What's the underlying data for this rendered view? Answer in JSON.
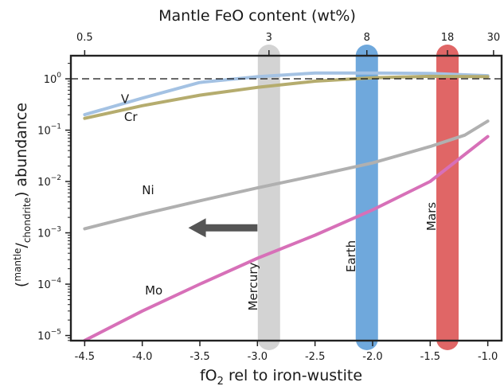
{
  "chart_data": {
    "type": "line",
    "x_axis": {
      "label_main": "fO",
      "label_sub": "2",
      "label_rest": " rel to iron-wustite",
      "range": [
        -4.62,
        -0.88
      ],
      "ticks": [
        -4.5,
        -4.0,
        -3.5,
        -3.0,
        -2.5,
        -2.0,
        -1.5,
        -1.0
      ],
      "tick_labels": [
        "-4.5",
        "-4.0",
        "-3.5",
        "-3.0",
        "-2.5",
        "-2.0",
        "-1.5",
        "-1.0"
      ]
    },
    "y_axis": {
      "scale": "log",
      "range_exponent": [
        -5.1,
        0.45
      ],
      "ticks_exponent": [
        -5,
        -4,
        -3,
        -2,
        -1,
        0
      ],
      "label_open": "(",
      "label_sup1": "mantle",
      "label_slash": "/",
      "label_sub1": "chondrite",
      "label_close": ") abundance"
    },
    "top_axis": {
      "label": "Mantle FeO content (wt%)",
      "ticks": [
        {
          "label": "0.5",
          "x": -4.5
        },
        {
          "label": "3",
          "x": -2.9
        },
        {
          "label": "8",
          "x": -2.05
        },
        {
          "label": "18",
          "x": -1.35
        },
        {
          "label": "30",
          "x": -0.95
        }
      ]
    },
    "reference_line": {
      "y": 1,
      "style": "dashed"
    },
    "bands": [
      {
        "name": "Mercury",
        "x": -2.9,
        "color": "#d3d3d3"
      },
      {
        "name": "Earth",
        "x": -2.05,
        "color": "#6fa8dc"
      },
      {
        "name": "Mars",
        "x": -1.35,
        "color": "#e06666"
      }
    ],
    "series": [
      {
        "name": "V",
        "color": "#a4c2e3",
        "x": [
          -4.5,
          -4.0,
          -3.5,
          -3.0,
          -2.5,
          -2.0,
          -1.5,
          -1.0
        ],
        "y": [
          0.2,
          0.42,
          0.85,
          1.1,
          1.3,
          1.3,
          1.27,
          1.15
        ]
      },
      {
        "name": "Cr",
        "color": "#b5ac6e",
        "x": [
          -4.5,
          -4.0,
          -3.5,
          -3.0,
          -2.5,
          -2.0,
          -1.5,
          -1.0
        ],
        "y": [
          0.17,
          0.3,
          0.48,
          0.68,
          0.9,
          1.05,
          1.12,
          1.1
        ]
      },
      {
        "name": "Ni",
        "color": "#b0b0b0",
        "x": [
          -4.5,
          -4.0,
          -3.5,
          -3.0,
          -2.5,
          -2.0,
          -1.5,
          -1.2,
          -1.0
        ],
        "y": [
          0.0012,
          0.0023,
          0.0042,
          0.0075,
          0.013,
          0.023,
          0.048,
          0.08,
          0.15
        ]
      },
      {
        "name": "Mo",
        "color": "#d770b8",
        "x": [
          -4.5,
          -4.0,
          -3.5,
          -3.0,
          -2.5,
          -2.0,
          -1.5,
          -1.0
        ],
        "y": [
          8e-06,
          3e-05,
          0.0001,
          0.00032,
          0.0009,
          0.0028,
          0.01,
          0.075
        ]
      }
    ],
    "series_labels": [
      {
        "text": "V",
        "x": -4.15,
        "y": 0.4
      },
      {
        "text": "Cr",
        "x": -4.1,
        "y": 0.18
      },
      {
        "text": "Ni",
        "x": -3.95,
        "y": 0.0068
      },
      {
        "text": "Mo",
        "x": -3.9,
        "y": 7.5e-05
      }
    ],
    "arrow": {
      "from_x": -3.0,
      "to_x": -3.6,
      "y": 0.00125,
      "color": "#555555"
    }
  }
}
